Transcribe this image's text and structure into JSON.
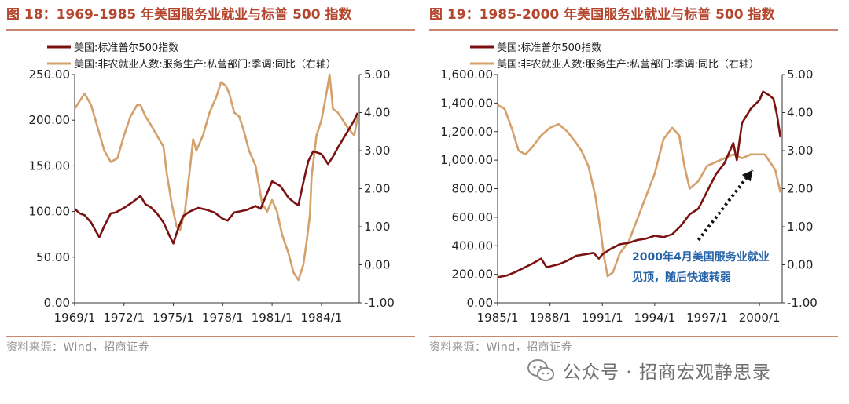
{
  "colors": {
    "spx": "#7a1212",
    "services": "#d4a06b",
    "accent": "#b5462e",
    "annotation": "#2563a8"
  },
  "watermark": {
    "text": "公众号 · 招商宏观静思录",
    "icon": "wechat-icon"
  },
  "charts": [
    {
      "figure_title": "图 18：1969-1985 年美国服务业就业与标普 500 指数",
      "source": "资料来源：Wind，招商证券",
      "annotation": null,
      "chart_data": {
        "type": "line",
        "title": "图 18：1969-1985 年美国服务业就业与标普 500 指数",
        "x_range": [
          1969.0,
          1986.3
        ],
        "x_ticks": [
          1969,
          1972,
          1975,
          1978,
          1981,
          1984
        ],
        "x_tick_labels": [
          "1969/1",
          "1972/1",
          "1975/1",
          "1978/1",
          "1981/1",
          "1984/1"
        ],
        "y_left": {
          "min": 0,
          "max": 250,
          "ticks": [
            0,
            50,
            100,
            150,
            200,
            250
          ],
          "tick_labels": [
            "0.00",
            "50.00",
            "100.00",
            "150.00",
            "200.00",
            "250.00"
          ]
        },
        "y_right": {
          "min": -1,
          "max": 5,
          "ticks": [
            -1,
            0,
            1,
            2,
            3,
            4,
            5
          ],
          "tick_labels": [
            "-1.00",
            "0.00",
            "1.00",
            "2.00",
            "3.00",
            "4.00",
            "5.00"
          ]
        },
        "legend_position": "top-left",
        "series": [
          {
            "name": "美国:标准普尔500指数",
            "axis": "left",
            "color": "#7a1212",
            "x": [
              1969.0,
              1969.3,
              1969.6,
              1970.0,
              1970.3,
              1970.5,
              1970.8,
              1971.2,
              1971.5,
              1972.0,
              1972.5,
              1973.0,
              1973.3,
              1973.6,
              1974.0,
              1974.4,
              1974.8,
              1975.0,
              1975.3,
              1975.6,
              1976.0,
              1976.5,
              1977.0,
              1977.5,
              1978.0,
              1978.3,
              1978.7,
              1979.0,
              1979.5,
              1980.0,
              1980.3,
              1980.7,
              1981.0,
              1981.5,
              1982.0,
              1982.4,
              1982.6,
              1982.9,
              1983.2,
              1983.5,
              1984.0,
              1984.4,
              1984.7,
              1985.0,
              1985.5,
              1986.0,
              1986.2
            ],
            "values": [
              103,
              98,
              96,
              88,
              78,
              72,
              84,
              98,
              99,
              104,
              110,
              117,
              108,
              105,
              98,
              88,
              72,
              65,
              82,
              95,
              100,
              104,
              102,
              99,
              92,
              90,
              99,
              100,
              102,
              106,
              103,
              120,
              133,
              128,
              115,
              109,
              107,
              132,
              155,
              166,
              163,
              152,
              160,
              170,
              185,
              200,
              208
            ]
          },
          {
            "name": "美国:非农就业人数:服务生产:私营部门:季调:同比（右轴）",
            "axis": "right",
            "color": "#d4a06b",
            "x": [
              1969.0,
              1969.3,
              1969.6,
              1970.0,
              1970.4,
              1970.8,
              1971.2,
              1971.6,
              1972.0,
              1972.4,
              1972.8,
              1973.0,
              1973.3,
              1973.6,
              1974.0,
              1974.4,
              1974.6,
              1974.9,
              1975.2,
              1975.4,
              1975.7,
              1976.0,
              1976.2,
              1976.4,
              1976.8,
              1977.2,
              1977.6,
              1977.9,
              1978.2,
              1978.4,
              1978.7,
              1979.0,
              1979.3,
              1979.6,
              1980.0,
              1980.4,
              1980.7,
              1981.0,
              1981.3,
              1981.6,
              1982.0,
              1982.3,
              1982.6,
              1982.9,
              1983.1,
              1983.3,
              1983.4,
              1983.7,
              1984.0,
              1984.3,
              1984.5,
              1984.7,
              1985.0,
              1985.3,
              1985.6,
              1986.0,
              1986.2
            ],
            "values": [
              4.1,
              4.3,
              4.5,
              4.2,
              3.6,
              3.0,
              2.7,
              2.8,
              3.4,
              3.9,
              4.2,
              4.2,
              3.9,
              3.7,
              3.4,
              3.1,
              2.4,
              1.6,
              1.0,
              0.9,
              1.4,
              2.5,
              3.3,
              3.0,
              3.4,
              4.0,
              4.4,
              4.8,
              4.7,
              4.5,
              4.0,
              3.9,
              3.5,
              3.0,
              2.6,
              1.6,
              1.4,
              1.7,
              1.4,
              0.8,
              0.3,
              -0.2,
              -0.4,
              0.0,
              0.6,
              1.3,
              2.3,
              3.4,
              3.8,
              4.5,
              5.0,
              4.1,
              4.0,
              3.8,
              3.6,
              3.4,
              3.9
            ]
          }
        ]
      }
    },
    {
      "figure_title": "图 19：1985-2000 年美国服务业就业与标普 500 指数",
      "source": "资料来源：Wind，招商证券",
      "annotation": {
        "line1": "2000年4月美国服务业就业",
        "line2": "见顶，随后快速转弱"
      },
      "chart_data": {
        "type": "line",
        "title": "图 19：1985-2000 年美国服务业就业与标普 500 指数",
        "x_range": [
          1985.0,
          2001.3
        ],
        "x_ticks": [
          1985,
          1988,
          1991,
          1994,
          1997,
          2000
        ],
        "x_tick_labels": [
          "1985/1",
          "1988/1",
          "1991/1",
          "1994/1",
          "1997/1",
          "2000/1"
        ],
        "y_left": {
          "min": 0,
          "max": 1600,
          "ticks": [
            0,
            200,
            400,
            600,
            800,
            1000,
            1200,
            1400,
            1600
          ],
          "tick_labels": [
            "0.00",
            "200.00",
            "400.00",
            "600.00",
            "800.00",
            "1,000.00",
            "1,200.00",
            "1,400.00",
            "1,600.00"
          ]
        },
        "y_right": {
          "min": -1,
          "max": 5,
          "ticks": [
            -1,
            0,
            1,
            2,
            3,
            4,
            5
          ],
          "tick_labels": [
            "-1.00",
            "0.00",
            "1.00",
            "2.00",
            "3.00",
            "4.00",
            "5.00"
          ]
        },
        "legend_position": "top-left",
        "series": [
          {
            "name": "美国:标准普尔500指数",
            "axis": "left",
            "color": "#7a1212",
            "x": [
              1985.0,
              1985.5,
              1986.0,
              1986.5,
              1987.0,
              1987.5,
              1987.8,
              1988.0,
              1988.5,
              1989.0,
              1989.5,
              1990.0,
              1990.5,
              1990.8,
              1991.0,
              1991.5,
              1992.0,
              1992.5,
              1993.0,
              1993.5,
              1994.0,
              1994.5,
              1995.0,
              1995.5,
              1996.0,
              1996.5,
              1997.0,
              1997.5,
              1998.0,
              1998.5,
              1998.7,
              1999.0,
              1999.5,
              2000.0,
              2000.2,
              2000.5,
              2000.8,
              2001.0,
              2001.2
            ],
            "values": [
              180,
              190,
              215,
              245,
              275,
              310,
              250,
              255,
              270,
              295,
              330,
              340,
              350,
              310,
              340,
              380,
              410,
              420,
              440,
              450,
              470,
              460,
              480,
              540,
              620,
              660,
              780,
              900,
              980,
              1120,
              1000,
              1260,
              1360,
              1420,
              1480,
              1460,
              1430,
              1320,
              1160
            ]
          },
          {
            "name": "美国:非农就业人数:服务生产:私营部门:季调:同比（右轴）",
            "axis": "right",
            "color": "#d4a06b",
            "x": [
              1985.0,
              1985.4,
              1985.8,
              1986.2,
              1986.6,
              1987.0,
              1987.5,
              1988.0,
              1988.5,
              1989.0,
              1989.5,
              1989.8,
              1990.2,
              1990.6,
              1990.9,
              1991.1,
              1991.3,
              1991.6,
              1992.0,
              1992.5,
              1993.0,
              1993.5,
              1994.0,
              1994.5,
              1995.0,
              1995.4,
              1995.7,
              1996.0,
              1996.5,
              1997.0,
              1997.5,
              1998.0,
              1998.5,
              1999.0,
              1999.5,
              2000.0,
              2000.3,
              2000.6,
              2000.9,
              2001.2
            ],
            "values": [
              4.2,
              4.1,
              3.6,
              3.0,
              2.9,
              3.1,
              3.4,
              3.6,
              3.7,
              3.5,
              3.2,
              3.0,
              2.6,
              1.8,
              0.9,
              0.2,
              -0.3,
              -0.2,
              0.3,
              0.6,
              1.2,
              1.8,
              2.4,
              3.3,
              3.6,
              3.4,
              2.6,
              2.0,
              2.2,
              2.6,
              2.7,
              2.8,
              2.9,
              2.8,
              2.9,
              2.9,
              2.9,
              2.7,
              2.5,
              1.9
            ]
          }
        ]
      }
    }
  ]
}
